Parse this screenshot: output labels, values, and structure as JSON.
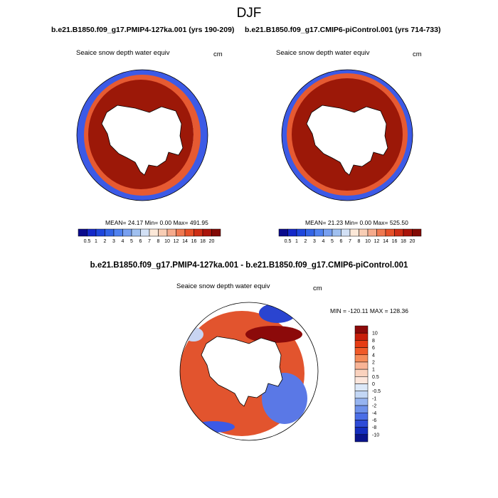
{
  "figure": {
    "title": "DJF",
    "colors": {
      "land": "#ffffff",
      "ocean": "#ffffff",
      "outline": "#000000"
    }
  },
  "panels": [
    {
      "case_title": "b.e21.B1850.f09_g17.PMIP4-127ka.001 (yrs 190-209)",
      "variable": "Seaice snow depth water equiv",
      "units": "cm",
      "stats": "MEAN=  24.17  Min=   0.00  Max= 491.95"
    },
    {
      "case_title": "b.e21.B1850.f09_g17.CMIP6-piControl.001 (yrs 714-733)",
      "variable": "Seaice snow depth water equiv",
      "units": "cm",
      "stats": "MEAN=  21.23  Min=   0.00  Max= 525.50"
    },
    {
      "case_title": "b.e21.B1850.f09_g17.PMIP4-127ka.001 - b.e21.B1850.f09_g17.CMIP6-piControl.001",
      "variable": "Seaice snow depth water equiv",
      "units": "cm",
      "stats": "MIN = -120.11 MAX = 128.36"
    }
  ],
  "colorbar_abs": {
    "labels": [
      "0.5",
      "1",
      "2",
      "3",
      "4",
      "5",
      "6",
      "7",
      "8",
      "10",
      "12",
      "14",
      "16",
      "18",
      "20"
    ],
    "colors": [
      "#0a0a8c",
      "#1428c8",
      "#1e46dc",
      "#3264e6",
      "#5082f0",
      "#78a0f0",
      "#a0c0f0",
      "#d2e0f5",
      "#fce8d8",
      "#f8cdb4",
      "#f5aa8c",
      "#ef7850",
      "#e65028",
      "#cd2d14",
      "#aa140a",
      "#820a05"
    ]
  },
  "colorbar_diff": {
    "labels": [
      "10",
      "8",
      "6",
      "4",
      "2",
      "1",
      "0.5",
      "0",
      "-0.5",
      "-1",
      "-2",
      "-4",
      "-6",
      "-8",
      "-10"
    ],
    "colors": [
      "#8c0a0a",
      "#c81e0a",
      "#e63c14",
      "#f05a28",
      "#f58c5a",
      "#f8b496",
      "#fad2be",
      "#fce6dc",
      "#dce8f8",
      "#c3d7f5",
      "#96b4f0",
      "#6e91ea",
      "#4b6ee6",
      "#2d4bd7",
      "#142dbe",
      "#0a148c"
    ]
  }
}
